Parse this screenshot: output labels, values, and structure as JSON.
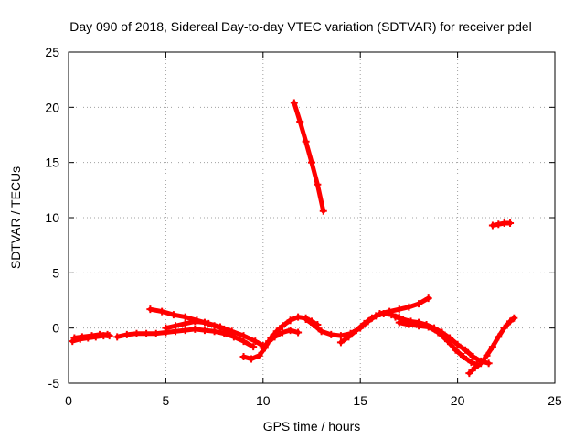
{
  "chart_data": {
    "type": "scatter",
    "title": "Day 090 of 2018, Sidereal Day-to-day VTEC variation (SDTVAR) for receiver pdel",
    "xlabel": "GPS time / hours",
    "ylabel": "SDTVAR / TECUs",
    "xlim": [
      0,
      25
    ],
    "ylim": [
      -5,
      25
    ],
    "grid": true,
    "xticks": [
      0,
      5,
      10,
      15,
      20,
      25
    ],
    "yticks": [
      -5,
      0,
      5,
      10,
      15,
      20,
      25
    ],
    "marker": "plus",
    "series": [
      {
        "name": "arc-01",
        "points": [
          [
            0.2,
            -1.2
          ],
          [
            0.6,
            -1.0
          ],
          [
            1.0,
            -0.9
          ],
          [
            1.4,
            -0.8
          ],
          [
            1.8,
            -0.7
          ],
          [
            2.1,
            -0.7
          ]
        ]
      },
      {
        "name": "arc-02",
        "points": [
          [
            0.3,
            -0.9
          ],
          [
            0.7,
            -0.8
          ],
          [
            1.2,
            -0.7
          ],
          [
            1.6,
            -0.6
          ],
          [
            2.0,
            -0.6
          ]
        ]
      },
      {
        "name": "arc-03",
        "points": [
          [
            2.5,
            -0.8
          ],
          [
            3.0,
            -0.6
          ],
          [
            3.5,
            -0.5
          ],
          [
            4.0,
            -0.5
          ],
          [
            4.5,
            -0.5
          ],
          [
            5.0,
            -0.4
          ],
          [
            5.5,
            -0.3
          ],
          [
            6.0,
            -0.2
          ],
          [
            6.5,
            -0.1
          ],
          [
            7.0,
            -0.2
          ],
          [
            7.5,
            -0.3
          ],
          [
            8.0,
            -0.5
          ],
          [
            8.5,
            -0.8
          ],
          [
            9.0,
            -1.2
          ],
          [
            9.5,
            -1.7
          ]
        ]
      },
      {
        "name": "arc-04",
        "points": [
          [
            4.2,
            1.7
          ],
          [
            4.8,
            1.5
          ],
          [
            5.4,
            1.2
          ],
          [
            6.0,
            1.0
          ],
          [
            6.6,
            0.7
          ],
          [
            7.2,
            0.4
          ],
          [
            7.8,
            0.1
          ],
          [
            8.4,
            -0.3
          ],
          [
            9.0,
            -0.7
          ],
          [
            9.6,
            -1.2
          ],
          [
            10.0,
            -1.6
          ]
        ]
      },
      {
        "name": "arc-05",
        "points": [
          [
            5.0,
            0.0
          ],
          [
            5.5,
            0.2
          ],
          [
            6.0,
            0.4
          ],
          [
            6.5,
            0.6
          ],
          [
            7.0,
            0.5
          ],
          [
            7.5,
            0.2
          ],
          [
            8.0,
            -0.1
          ],
          [
            8.5,
            -0.5
          ]
        ]
      },
      {
        "name": "arc-06",
        "points": [
          [
            9.0,
            -2.6
          ],
          [
            9.4,
            -2.8
          ],
          [
            9.8,
            -2.5
          ],
          [
            10.1,
            -1.8
          ],
          [
            10.4,
            -0.9
          ],
          [
            10.7,
            -0.3
          ],
          [
            11.0,
            0.2
          ],
          [
            11.4,
            0.7
          ],
          [
            11.8,
            1.0
          ],
          [
            12.2,
            0.9
          ],
          [
            12.5,
            0.6
          ],
          [
            12.8,
            0.3
          ]
        ]
      },
      {
        "name": "arc-07",
        "points": [
          [
            10.0,
            -1.8
          ],
          [
            10.3,
            -1.2
          ],
          [
            10.6,
            -0.8
          ],
          [
            11.0,
            -0.4
          ],
          [
            11.4,
            -0.2
          ],
          [
            11.8,
            -0.4
          ]
        ]
      },
      {
        "name": "arc-08",
        "points": [
          [
            11.6,
            20.4
          ],
          [
            11.9,
            18.7
          ],
          [
            12.2,
            16.9
          ],
          [
            12.5,
            15.0
          ],
          [
            12.8,
            13.0
          ],
          [
            13.1,
            10.6
          ]
        ]
      },
      {
        "name": "arc-09",
        "points": [
          [
            12.2,
            0.8
          ],
          [
            12.6,
            0.3
          ],
          [
            13.0,
            -0.3
          ],
          [
            13.5,
            -0.6
          ],
          [
            14.0,
            -0.7
          ],
          [
            14.5,
            -0.5
          ],
          [
            15.0,
            0.0
          ],
          [
            15.4,
            0.6
          ],
          [
            15.8,
            1.1
          ],
          [
            16.2,
            1.3
          ],
          [
            16.6,
            1.2
          ],
          [
            17.0,
            1.0
          ]
        ]
      },
      {
        "name": "arc-10",
        "points": [
          [
            14.0,
            -1.3
          ],
          [
            14.4,
            -0.8
          ],
          [
            14.8,
            -0.2
          ],
          [
            15.2,
            0.4
          ],
          [
            15.6,
            0.9
          ],
          [
            16.0,
            1.3
          ],
          [
            16.5,
            1.5
          ],
          [
            17.0,
            1.7
          ],
          [
            17.5,
            1.9
          ],
          [
            18.0,
            2.2
          ],
          [
            18.5,
            2.7
          ]
        ]
      },
      {
        "name": "arc-11",
        "points": [
          [
            16.8,
            1.0
          ],
          [
            17.2,
            0.8
          ],
          [
            17.6,
            0.6
          ],
          [
            18.0,
            0.5
          ],
          [
            18.4,
            0.3
          ],
          [
            18.8,
            0.0
          ],
          [
            19.2,
            -0.4
          ],
          [
            19.6,
            -0.9
          ],
          [
            20.0,
            -1.5
          ],
          [
            20.4,
            -2.0
          ],
          [
            20.8,
            -2.6
          ],
          [
            21.2,
            -3.0
          ],
          [
            21.6,
            -3.2
          ]
        ]
      },
      {
        "name": "arc-12",
        "points": [
          [
            17.0,
            0.5
          ],
          [
            17.5,
            0.3
          ],
          [
            18.0,
            0.2
          ],
          [
            18.5,
            0.1
          ],
          [
            19.0,
            -0.4
          ],
          [
            19.5,
            -1.2
          ],
          [
            19.9,
            -2.0
          ],
          [
            20.3,
            -2.6
          ],
          [
            20.7,
            -3.1
          ],
          [
            21.0,
            -3.3
          ]
        ]
      },
      {
        "name": "arc-13",
        "points": [
          [
            20.6,
            -4.1
          ],
          [
            20.9,
            -3.6
          ],
          [
            21.2,
            -3.2
          ],
          [
            21.5,
            -2.5
          ],
          [
            21.8,
            -1.7
          ],
          [
            22.1,
            -0.8
          ],
          [
            22.4,
            0.0
          ],
          [
            22.7,
            0.6
          ],
          [
            22.9,
            0.9
          ]
        ]
      },
      {
        "name": "arc-14",
        "points": [
          [
            21.8,
            9.3
          ],
          [
            22.1,
            9.4
          ],
          [
            22.4,
            9.5
          ],
          [
            22.7,
            9.5
          ]
        ]
      }
    ]
  },
  "colors": {
    "series": "#ff0000",
    "grid": "#a0a0a0",
    "axis": "#000000"
  }
}
